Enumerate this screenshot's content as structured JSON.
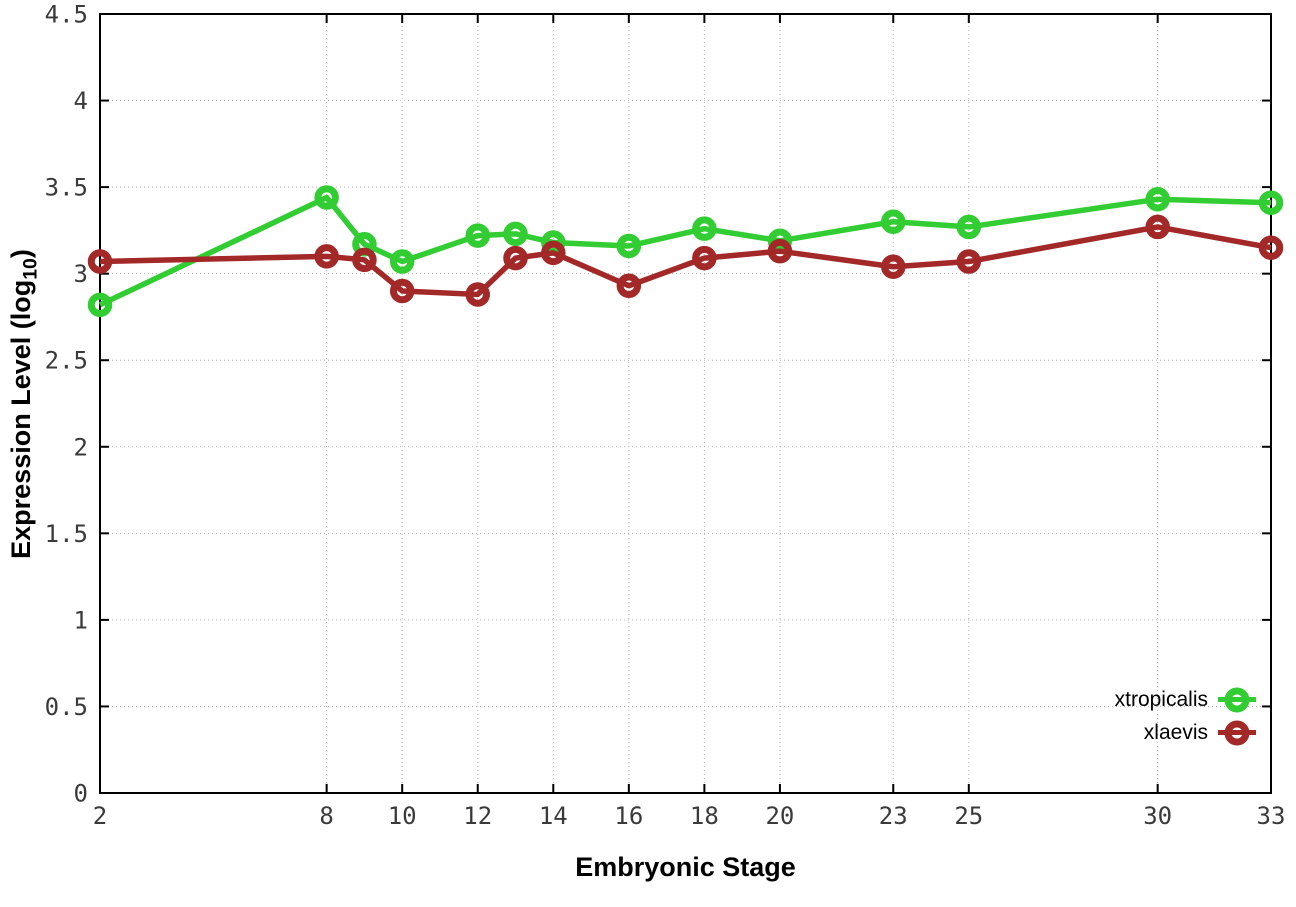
{
  "chart_data": {
    "type": "line",
    "title": "",
    "xlabel": "Embryonic Stage",
    "ylabel": {
      "pre": "Expression Level (log",
      "sub": "10",
      "post": ")"
    },
    "xlim": [
      2,
      33
    ],
    "ylim": [
      0,
      4.5
    ],
    "xticks": [
      2,
      8,
      10,
      12,
      14,
      16,
      18,
      20,
      23,
      25,
      30,
      33
    ],
    "yticks": [
      0,
      0.5,
      1,
      1.5,
      2,
      2.5,
      3,
      3.5,
      4,
      4.5
    ],
    "grid": true,
    "legend_position": "inside-bottom-right",
    "marker": "open-circle",
    "x": [
      2,
      8,
      9,
      10,
      12,
      13,
      14,
      16,
      18,
      20,
      23,
      25,
      30,
      33
    ],
    "series": [
      {
        "name": "xtropicalis",
        "color": "#32cd32",
        "values": [
          2.82,
          3.44,
          3.17,
          3.07,
          3.22,
          3.23,
          3.18,
          3.16,
          3.26,
          3.19,
          3.3,
          3.27,
          3.43,
          3.41
        ]
      },
      {
        "name": "xlaevis",
        "color": "#a32929",
        "values": [
          3.07,
          3.1,
          3.08,
          2.9,
          2.88,
          3.09,
          3.12,
          2.93,
          3.09,
          3.13,
          3.04,
          3.07,
          3.27,
          3.15
        ]
      }
    ],
    "axis_color": "#000000",
    "grid_color": "#b5b5b5",
    "tick_label_color": "#3a3a3a"
  }
}
